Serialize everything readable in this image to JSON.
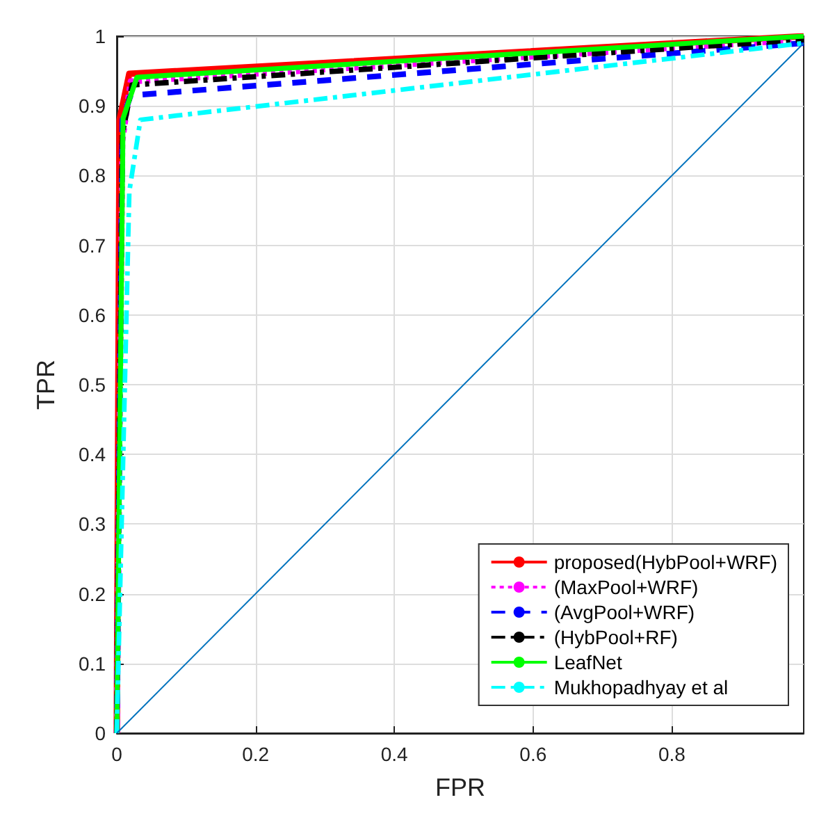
{
  "chart_data": {
    "type": "line",
    "xlabel": "FPR",
    "ylabel": "TPR",
    "xlim": [
      0,
      0.99
    ],
    "ylim": [
      0,
      1
    ],
    "xticks": [
      0,
      0.2,
      0.4,
      0.6,
      0.8
    ],
    "yticks": [
      0,
      0.1,
      0.2,
      0.3,
      0.4,
      0.5,
      0.6,
      0.7,
      0.8,
      0.9,
      1
    ],
    "grid": true,
    "legend": "bottom right",
    "marker": "none",
    "series": [
      {
        "name": "proposed(HybPool+WRF)",
        "color": "#ff0000",
        "line_style": "solid",
        "x": [
          0,
          0.004,
          0.018,
          0.99
        ],
        "values": [
          0,
          0.88,
          0.946,
          1
        ]
      },
      {
        "name": "(MaxPool+WRF)",
        "color": "#ff00ff",
        "line_style": "dotted",
        "x": [
          0,
          0.008,
          0.02,
          0.99
        ],
        "values": [
          0,
          0.85,
          0.935,
          0.995
        ]
      },
      {
        "name": "(AvgPool+WRF)",
        "color": "#0000ff",
        "line_style": "dashed",
        "x": [
          0,
          0.008,
          0.02,
          0.99
        ],
        "values": [
          0,
          0.88,
          0.915,
          0.99
        ]
      },
      {
        "name": "(HybPool+RF)",
        "color": "#000000",
        "line_style": "dashdot",
        "x": [
          0,
          0.008,
          0.022,
          0.99
        ],
        "values": [
          0,
          0.86,
          0.93,
          0.995
        ]
      },
      {
        "name": "LeafNet",
        "color": "#00ff00",
        "line_style": "solid",
        "x": [
          0,
          0.009,
          0.029,
          0.99
        ],
        "values": [
          0,
          0.882,
          0.941,
          1
        ]
      },
      {
        "name": "Mukhopadhyay et al",
        "color": "#00ffff",
        "line_style": "dashdot",
        "x": [
          0,
          0.018,
          0.034,
          0.99
        ],
        "values": [
          0,
          0.777,
          0.88,
          0.99
        ]
      },
      {
        "color": "#0072bd",
        "line_style": "solid",
        "x": [
          0,
          0.99
        ],
        "values": [
          0,
          0.99
        ]
      }
    ]
  }
}
